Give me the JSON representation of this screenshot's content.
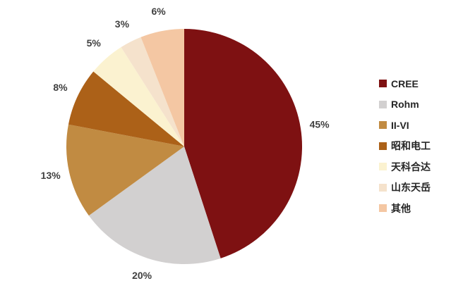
{
  "chart_data": {
    "type": "pie",
    "title": "",
    "labels": [
      "CREE",
      "Rohm",
      "II-VI",
      "昭和电工",
      "天科合达",
      "山东天岳",
      "其他"
    ],
    "values": [
      45,
      20,
      13,
      8,
      5,
      3,
      6
    ],
    "data_labels": [
      "45%",
      "20%",
      "13%",
      "8%",
      "5%",
      "3%",
      "6%"
    ],
    "colors": [
      "#7E1112",
      "#D2D0D0",
      "#C18B42",
      "#AC6118",
      "#FBF2D0",
      "#F5E2CC",
      "#F4C7A3"
    ],
    "start_angle_deg": 0,
    "direction": "clockwise",
    "legend_position": "right",
    "label_text_color": "#404040",
    "legend_text_color": "#262626",
    "background_color": "#FFFFFF"
  }
}
